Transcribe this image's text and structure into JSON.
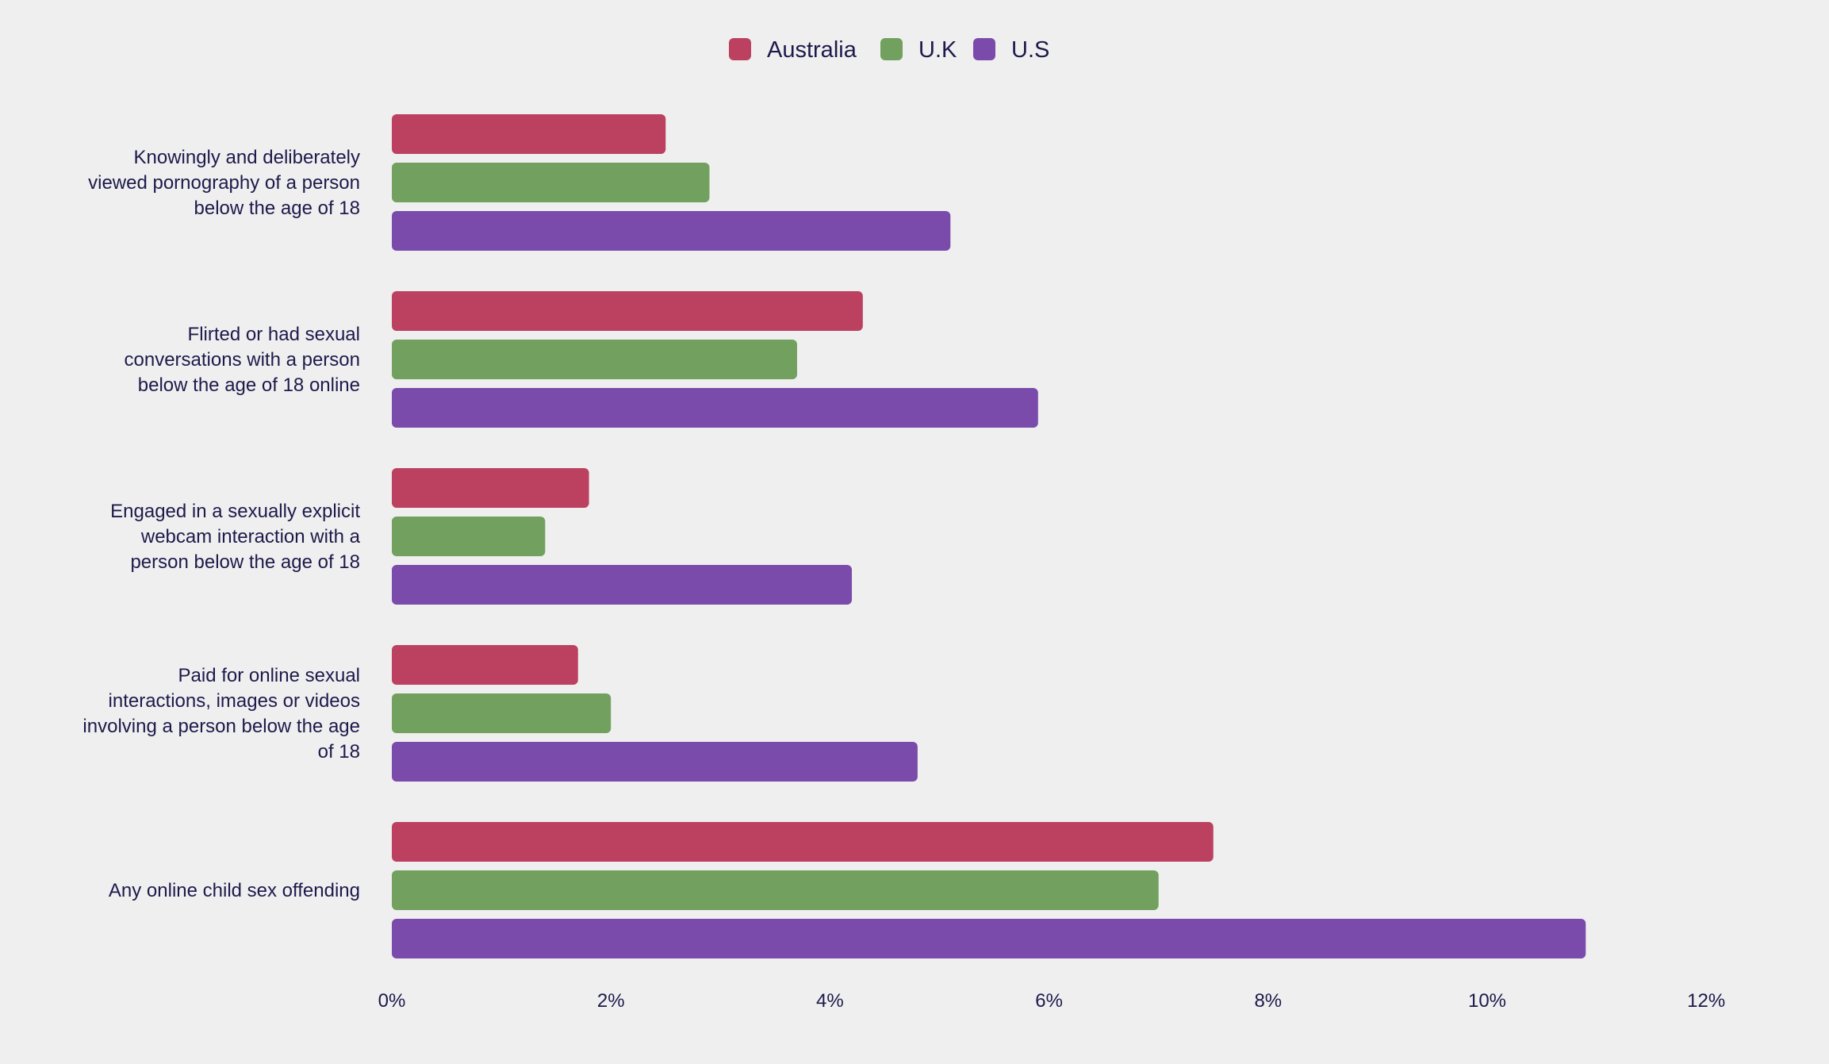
{
  "chart_data": {
    "type": "bar",
    "orientation": "horizontal",
    "title": "",
    "xlabel": "",
    "ylabel": "",
    "xlim": [
      0,
      12
    ],
    "x_ticks": [
      0,
      2,
      4,
      6,
      8,
      10,
      12
    ],
    "x_tick_labels": [
      "0%",
      "2%",
      "4%",
      "6%",
      "8%",
      "10%",
      "12%"
    ],
    "grid": false,
    "legend_position": "top-center",
    "categories": [
      [
        "Knowingly and deliberately",
        "viewed pornography of a person",
        "below the age of 18"
      ],
      [
        "Flirted or had sexual",
        "conversations with a person",
        "below the age of 18 online"
      ],
      [
        "Engaged in a sexually explicit",
        "webcam interaction with a",
        "person below the age of 18"
      ],
      [
        "Paid for online sexual",
        "interactions, images or videos",
        "involving a person below the age",
        "of 18"
      ],
      [
        "Any online child sex offending"
      ]
    ],
    "series": [
      {
        "name": "Australia",
        "color": "#bc4060",
        "values": [
          2.5,
          4.3,
          1.8,
          1.7,
          7.5
        ]
      },
      {
        "name": "U.K",
        "color": "#72a05f",
        "values": [
          2.9,
          3.7,
          1.4,
          2.0,
          7.0
        ]
      },
      {
        "name": "U.S",
        "color": "#7a4baa",
        "values": [
          5.1,
          5.9,
          4.2,
          4.8,
          10.9
        ]
      }
    ]
  }
}
